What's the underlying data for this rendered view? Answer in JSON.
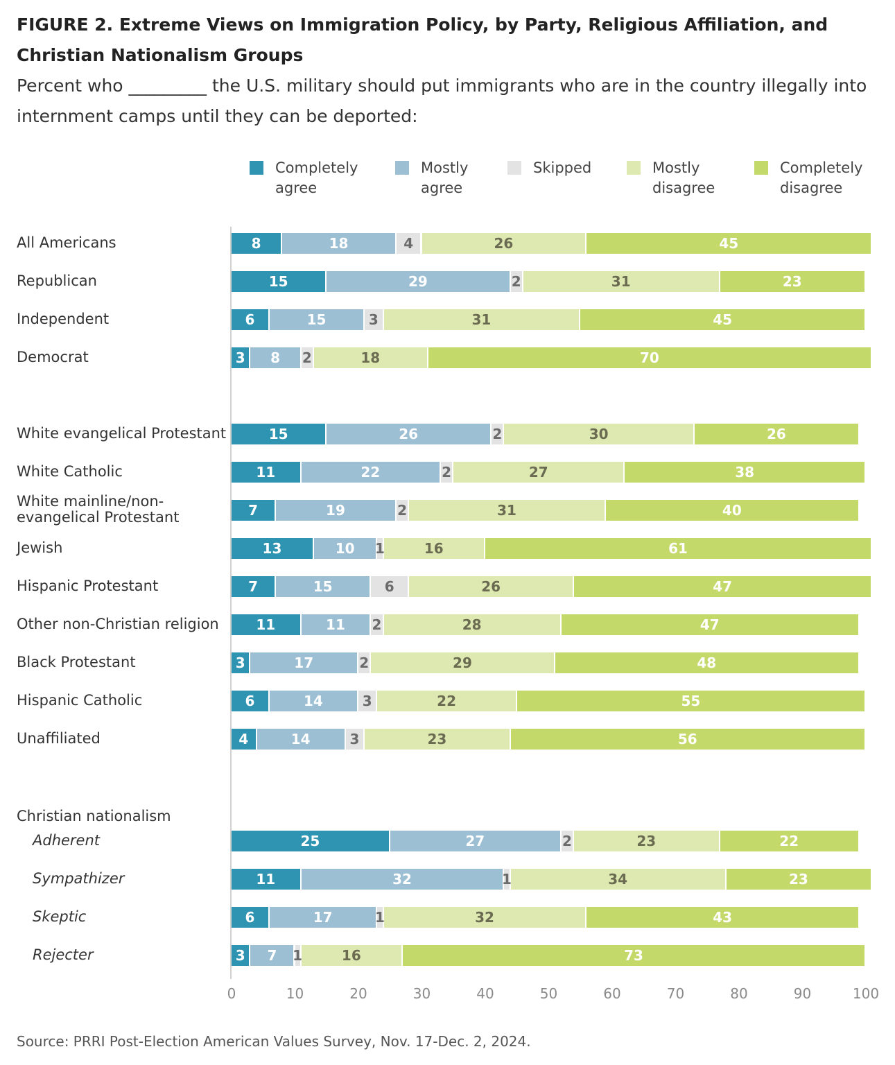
{
  "title": "FIGURE 2. Extreme Views on Immigration Policy, by Party, Religious Affiliation, and Christian Nationalism Groups",
  "subtitle": "Percent who _________ the U.S. military should put immigrants who are in the country illegally into internment camps until they can be deported:",
  "source": "Source: PRRI Post-Election American Values Survey, Nov. 17-Dec. 2, 2024.",
  "chart_data": {
    "type": "bar",
    "orientation": "horizontal",
    "stacked": true,
    "title": "FIGURE 2. Extreme Views on Immigration Policy, by Party, Religious Affiliation, and Christian Nationalism Groups",
    "xlim": [
      0,
      100
    ],
    "xticks": [
      "0",
      "10",
      "20",
      "30",
      "40",
      "50",
      "60",
      "70",
      "80",
      "90",
      "100"
    ],
    "legend_placement": "top",
    "group_heading": "Christian nationalism",
    "series": [
      {
        "name": "Completely agree",
        "color": "#2f94b1",
        "text_color": "#ffffff"
      },
      {
        "name": "Mostly agree",
        "color": "#9dbfd3",
        "text_color": "#ffffff"
      },
      {
        "name": "Skipped",
        "color": "#e3e3e3",
        "text_color": "#6b6b6b"
      },
      {
        "name": "Mostly disagree",
        "color": "#dde9b1",
        "text_color": "#6b6b52"
      },
      {
        "name": "Completely disagree",
        "color": "#c3d969",
        "text_color": "#ffffff"
      }
    ],
    "categories": [
      {
        "label": "All Americans",
        "values": [
          8,
          18,
          4,
          26,
          45
        ]
      },
      {
        "label": "Republican",
        "values": [
          15,
          29,
          2,
          31,
          23
        ]
      },
      {
        "label": "Independent",
        "values": [
          6,
          15,
          3,
          31,
          45
        ]
      },
      {
        "label": "Democrat",
        "values": [
          3,
          8,
          2,
          18,
          70
        ]
      },
      {
        "label": "White evangelical Protestant",
        "values": [
          15,
          26,
          2,
          30,
          26
        ]
      },
      {
        "label": "White Catholic",
        "values": [
          11,
          22,
          2,
          27,
          38
        ]
      },
      {
        "label": "White mainline/non-evangelical Protestant",
        "values": [
          7,
          19,
          2,
          31,
          40
        ]
      },
      {
        "label": "Jewish",
        "values": [
          13,
          10,
          1,
          16,
          61
        ]
      },
      {
        "label": "Hispanic Protestant",
        "values": [
          7,
          15,
          6,
          26,
          47
        ]
      },
      {
        "label": "Other non-Christian religion",
        "values": [
          11,
          11,
          2,
          28,
          47
        ]
      },
      {
        "label": "Black Protestant",
        "values": [
          3,
          17,
          2,
          29,
          48
        ]
      },
      {
        "label": "Hispanic Catholic",
        "values": [
          6,
          14,
          3,
          22,
          55
        ]
      },
      {
        "label": "Unaffiliated",
        "values": [
          4,
          14,
          3,
          23,
          56
        ]
      },
      {
        "label": "Adherent",
        "values": [
          25,
          27,
          2,
          23,
          22
        ],
        "italic": true
      },
      {
        "label": "Sympathizer",
        "values": [
          11,
          32,
          1,
          34,
          23
        ],
        "italic": true
      },
      {
        "label": "Skeptic",
        "values": [
          6,
          17,
          1,
          32,
          43
        ],
        "italic": true
      },
      {
        "label": "Rejecter",
        "values": [
          3,
          7,
          1,
          16,
          73
        ],
        "italic": true
      }
    ]
  }
}
